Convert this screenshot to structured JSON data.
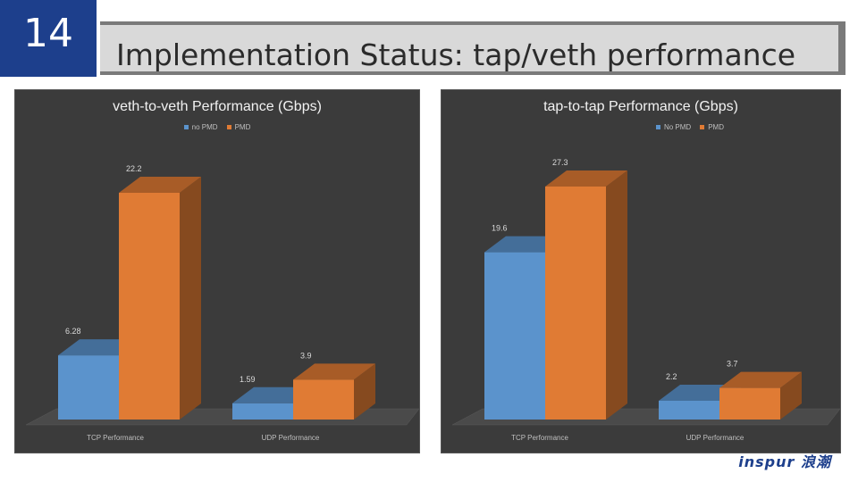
{
  "slide": {
    "number": "14",
    "title": "Implementation Status: tap/veth performance",
    "logo": "inspur 浪潮"
  },
  "colors": {
    "series_blue": "#5b93cc",
    "series_orange": "#e07b34",
    "panel_bg": "#3b3b3b"
  },
  "chart_data": [
    {
      "type": "bar",
      "title": "veth-to-veth Performance (Gbps)",
      "categories": [
        "TCP Performance",
        "UDP Performance"
      ],
      "series": [
        {
          "name": "no PMD",
          "values": [
            6.28,
            1.59
          ],
          "labels": [
            "6.28",
            "1.59"
          ]
        },
        {
          "name": "PMD",
          "values": [
            22.2,
            3.9
          ],
          "labels": [
            "22.2",
            "3.9"
          ]
        }
      ],
      "ylim": [
        0,
        22.2
      ],
      "legend": "top",
      "grid": false
    },
    {
      "type": "bar",
      "title": "tap-to-tap Performance (Gbps)",
      "categories": [
        "TCP Performance",
        "UDP Performance"
      ],
      "series": [
        {
          "name": "No PMD",
          "values": [
            19.6,
            2.2
          ],
          "labels": [
            "19.6",
            "2.2"
          ]
        },
        {
          "name": "PMD",
          "values": [
            27.3,
            3.7
          ],
          "labels": [
            "27.3",
            "3.7"
          ]
        }
      ],
      "ylim": [
        0,
        27.3
      ],
      "legend": "top",
      "grid": false
    }
  ]
}
